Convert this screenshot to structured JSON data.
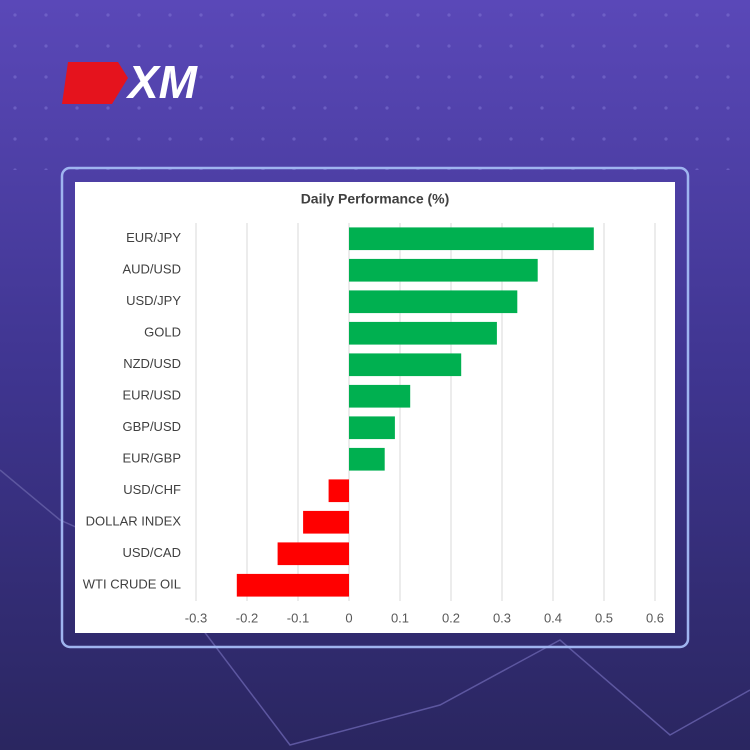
{
  "logo": "XM",
  "chart_data": {
    "type": "bar",
    "orientation": "horizontal",
    "title": "Daily Performance (%)",
    "categories": [
      "EUR/JPY",
      "AUD/USD",
      "USD/JPY",
      "GOLD",
      "NZD/USD",
      "EUR/USD",
      "GBP/USD",
      "EUR/GBP",
      "USD/CHF",
      "DOLLAR INDEX",
      "USD/CAD",
      "WTI CRUDE OIL"
    ],
    "values": [
      0.48,
      0.37,
      0.33,
      0.29,
      0.22,
      0.12,
      0.09,
      0.07,
      -0.04,
      -0.09,
      -0.14,
      -0.22
    ],
    "colors": [
      "#00b050",
      "#00b050",
      "#00b050",
      "#00b050",
      "#00b050",
      "#00b050",
      "#00b050",
      "#00b050",
      "#ff0000",
      "#ff0000",
      "#ff0000",
      "#ff0000"
    ],
    "xlim": [
      -0.3,
      0.6
    ],
    "xticks": [
      -0.3,
      -0.2,
      -0.1,
      0,
      0.1,
      0.2,
      0.3,
      0.4,
      0.5,
      0.6
    ],
    "grid": true
  }
}
